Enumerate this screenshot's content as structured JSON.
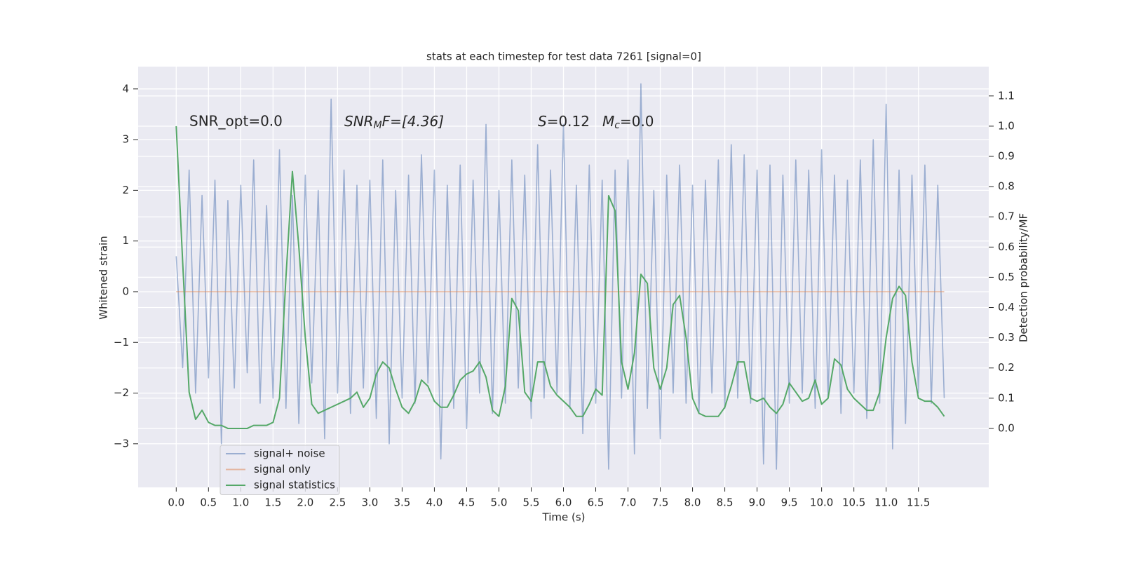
{
  "chart_data": {
    "type": "line",
    "title": "stats at each timestep for test data 7261 [signal=0]",
    "xlabel": "Time (s)",
    "ylabel": "Whitened strain",
    "y2label": "Detection probability/MF",
    "annotations": [
      {
        "main": "SNR_opt=0.0"
      },
      {
        "main": "SNR",
        "sub": "M",
        "rest": "F=[4.36]"
      },
      {
        "main": "S",
        "rest": "=0.12"
      },
      {
        "main": "M",
        "sub": "c",
        "rest": "=0.0"
      }
    ],
    "x": [
      0,
      0.1,
      0.2,
      0.3,
      0.4,
      0.5,
      0.6,
      0.7,
      0.8,
      0.9,
      1,
      1.1,
      1.2,
      1.3,
      1.4,
      1.5,
      1.6,
      1.7,
      1.8,
      1.9,
      2,
      2.1,
      2.2,
      2.3,
      2.4,
      2.5,
      2.6,
      2.7,
      2.8,
      2.9,
      3,
      3.1,
      3.2,
      3.3,
      3.4,
      3.5,
      3.6,
      3.7,
      3.8,
      3.9,
      4,
      4.1,
      4.2,
      4.3,
      4.4,
      4.5,
      4.6,
      4.7,
      4.8,
      4.9,
      5,
      5.1,
      5.2,
      5.3,
      5.4,
      5.5,
      5.6,
      5.7,
      5.8,
      5.9,
      6,
      6.1,
      6.2,
      6.3,
      6.4,
      6.5,
      6.6,
      6.7,
      6.8,
      6.9,
      7,
      7.1,
      7.2,
      7.3,
      7.4,
      7.5,
      7.6,
      7.7,
      7.8,
      7.9,
      8,
      8.1,
      8.2,
      8.3,
      8.4,
      8.5,
      8.6,
      8.7,
      8.8,
      8.9,
      9,
      9.1,
      9.2,
      9.3,
      9.4,
      9.5,
      9.6,
      9.7,
      9.8,
      9.9,
      10,
      10.1,
      10.2,
      10.3,
      10.4,
      10.5,
      10.6,
      10.7,
      10.8,
      10.9,
      11,
      11.1,
      11.2,
      11.3,
      11.4,
      11.5,
      11.6,
      11.7,
      11.8,
      11.9
    ],
    "series": [
      {
        "name": "signal+ noise",
        "color": "#4c72b0",
        "opacity": 0.5,
        "values": [
          0.7,
          -1.5,
          2.4,
          -2.0,
          1.9,
          -1.7,
          2.2,
          -3.0,
          1.8,
          -1.9,
          2.1,
          -1.6,
          2.6,
          -2.2,
          1.7,
          -2.1,
          2.8,
          -2.3,
          1.9,
          -2.6,
          2.3,
          -1.8,
          2.0,
          -2.9,
          3.8,
          -2.0,
          2.4,
          -2.4,
          2.1,
          -1.9,
          2.2,
          -2.5,
          2.6,
          -3.0,
          2.0,
          -2.1,
          2.3,
          -2.2,
          2.7,
          -1.8,
          2.4,
          -3.3,
          2.1,
          -2.3,
          2.5,
          -2.7,
          2.2,
          -2.0,
          3.3,
          -2.4,
          2.0,
          -2.2,
          2.6,
          -1.9,
          2.3,
          -2.5,
          2.9,
          -2.1,
          2.4,
          -2.0,
          3.3,
          -2.3,
          2.1,
          -2.8,
          2.5,
          -2.2,
          2.2,
          -3.5,
          2.4,
          -2.1,
          2.6,
          -3.2,
          4.1,
          -2.3,
          2.0,
          -2.9,
          2.3,
          -2.0,
          2.5,
          -2.2,
          2.1,
          -2.4,
          2.2,
          -2.0,
          2.6,
          -2.3,
          2.9,
          -2.1,
          2.7,
          -2.2,
          2.4,
          -3.4,
          2.5,
          -3.5,
          2.3,
          -2.2,
          2.6,
          -2.0,
          2.4,
          -2.3,
          2.8,
          -2.1,
          2.3,
          -2.4,
          2.2,
          -2.0,
          2.6,
          -2.5,
          3.0,
          -2.2,
          3.7,
          -3.1,
          2.4,
          -2.6,
          2.3,
          -2.0,
          2.5,
          -2.2,
          2.1,
          -2.1
        ]
      },
      {
        "name": "signal only",
        "color": "#dd8452",
        "opacity": 0.5,
        "values": [
          0,
          0,
          0,
          0,
          0,
          0,
          0,
          0,
          0,
          0,
          0,
          0,
          0,
          0,
          0,
          0,
          0,
          0,
          0,
          0,
          0,
          0,
          0,
          0,
          0,
          0,
          0,
          0,
          0,
          0,
          0,
          0,
          0,
          0,
          0,
          0,
          0,
          0,
          0,
          0,
          0,
          0,
          0,
          0,
          0,
          0,
          0,
          0,
          0,
          0,
          0,
          0,
          0,
          0,
          0,
          0,
          0,
          0,
          0,
          0,
          0,
          0,
          0,
          0,
          0,
          0,
          0,
          0,
          0,
          0,
          0,
          0,
          0,
          0,
          0,
          0,
          0,
          0,
          0,
          0,
          0,
          0,
          0,
          0,
          0,
          0,
          0,
          0,
          0,
          0,
          0,
          0,
          0,
          0,
          0,
          0,
          0,
          0,
          0,
          0,
          0,
          0,
          0,
          0,
          0,
          0,
          0,
          0,
          0,
          0,
          0,
          0,
          0,
          0,
          0,
          0,
          0,
          0,
          0,
          0
        ]
      },
      {
        "name": "signal statistics",
        "color": "#55a868",
        "opacity": 1,
        "axis": "y2",
        "values": [
          1.0,
          0.55,
          0.12,
          0.03,
          0.06,
          0.02,
          0.01,
          0.01,
          0.0,
          0.0,
          0.0,
          0.0,
          0.01,
          0.01,
          0.01,
          0.02,
          0.1,
          0.5,
          0.85,
          0.6,
          0.3,
          0.08,
          0.05,
          0.06,
          0.07,
          0.08,
          0.09,
          0.1,
          0.12,
          0.07,
          0.1,
          0.18,
          0.22,
          0.2,
          0.13,
          0.07,
          0.05,
          0.09,
          0.16,
          0.14,
          0.09,
          0.07,
          0.07,
          0.11,
          0.16,
          0.18,
          0.19,
          0.22,
          0.17,
          0.06,
          0.04,
          0.14,
          0.43,
          0.39,
          0.12,
          0.09,
          0.22,
          0.22,
          0.14,
          0.11,
          0.09,
          0.07,
          0.04,
          0.04,
          0.08,
          0.13,
          0.11,
          0.77,
          0.72,
          0.22,
          0.13,
          0.25,
          0.51,
          0.48,
          0.2,
          0.13,
          0.2,
          0.41,
          0.44,
          0.3,
          0.1,
          0.05,
          0.04,
          0.04,
          0.04,
          0.07,
          0.14,
          0.22,
          0.22,
          0.1,
          0.09,
          0.1,
          0.07,
          0.05,
          0.08,
          0.15,
          0.12,
          0.09,
          0.1,
          0.16,
          0.08,
          0.1,
          0.23,
          0.21,
          0.13,
          0.1,
          0.08,
          0.06,
          0.06,
          0.12,
          0.3,
          0.43,
          0.47,
          0.44,
          0.22,
          0.1,
          0.09,
          0.09,
          0.07,
          0.04
        ]
      }
    ],
    "xlim": [
      -0.59,
      12.59
    ],
    "ylim": [
      -3.86,
      4.44
    ],
    "y2lim": [
      -0.195,
      1.197
    ],
    "xticks": [
      {
        "value": 0,
        "label": "0.0"
      },
      {
        "value": 0.5,
        "label": "0.5"
      },
      {
        "value": 1,
        "label": "1.0"
      },
      {
        "value": 1.5,
        "label": "1.5"
      },
      {
        "value": 2,
        "label": "2.0"
      },
      {
        "value": 2.5,
        "label": "2.5"
      },
      {
        "value": 3,
        "label": "3.0"
      },
      {
        "value": 3.5,
        "label": "3.5"
      },
      {
        "value": 4,
        "label": "4.0"
      },
      {
        "value": 4.5,
        "label": "4.5"
      },
      {
        "value": 5,
        "label": "5.0"
      },
      {
        "value": 5.5,
        "label": "5.5"
      },
      {
        "value": 6,
        "label": "6.0"
      },
      {
        "value": 6.5,
        "label": "6.5"
      },
      {
        "value": 7,
        "label": "7.0"
      },
      {
        "value": 7.5,
        "label": "7.5"
      },
      {
        "value": 8,
        "label": "8.0"
      },
      {
        "value": 8.5,
        "label": "8.5"
      },
      {
        "value": 9,
        "label": "9.0"
      },
      {
        "value": 9.5,
        "label": "9.5"
      },
      {
        "value": 10,
        "label": "10.0"
      },
      {
        "value": 10.5,
        "label": "10.5"
      },
      {
        "value": 11,
        "label": "11.0"
      },
      {
        "value": 11.5,
        "label": "11.5"
      }
    ],
    "yticks": [
      {
        "value": -3,
        "label": "−3"
      },
      {
        "value": -2,
        "label": "−2"
      },
      {
        "value": -1,
        "label": "−1"
      },
      0,
      1,
      2,
      3,
      4
    ],
    "y2ticks": [
      {
        "value": 0,
        "label": "0.0"
      },
      {
        "value": 0.1,
        "label": "0.1"
      },
      {
        "value": 0.2,
        "label": "0.2"
      },
      {
        "value": 0.3,
        "label": "0.3"
      },
      {
        "value": 0.4,
        "label": "0.4"
      },
      {
        "value": 0.5,
        "label": "0.5"
      },
      {
        "value": 0.6,
        "label": "0.6"
      },
      {
        "value": 0.7,
        "label": "0.7"
      },
      {
        "value": 0.8,
        "label": "0.8"
      },
      {
        "value": 0.9,
        "label": "0.9"
      },
      {
        "value": 1,
        "label": "1.0"
      },
      {
        "value": 1.1,
        "label": "1.1"
      }
    ],
    "grid": true,
    "legend": "lower left"
  }
}
